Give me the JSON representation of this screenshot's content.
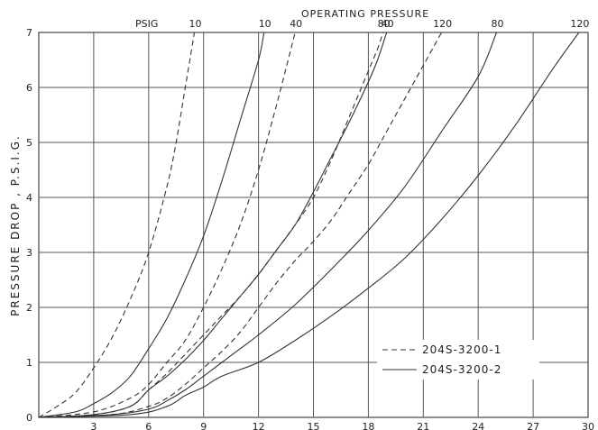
{
  "chart_data": {
    "type": "line",
    "ylabel": "PRESSURE DROP , P.S.I.G.",
    "xlim": [
      0,
      30
    ],
    "ylim": [
      0,
      7
    ],
    "x_ticks": [
      "3",
      "6",
      "9",
      "12",
      "15",
      "18",
      "21",
      "24",
      "27",
      "30"
    ],
    "y_ticks": [
      "0",
      "1",
      "2",
      "3",
      "4",
      "5",
      "6",
      "7"
    ],
    "top_labels": {
      "unit": "PSIG",
      "title": "OPERATING PRESSURE"
    },
    "grid": true,
    "legend": {
      "placement": "bottom-right",
      "entries": [
        {
          "name": "204S-3200-1",
          "style": "dashed"
        },
        {
          "name": "204S-3200-2",
          "style": "solid"
        }
      ]
    },
    "series": [
      {
        "name": "204S-3200-1",
        "label": "10",
        "style": "dashed",
        "points": [
          [
            0,
            0
          ],
          [
            1,
            0.2
          ],
          [
            2,
            0.45
          ],
          [
            3,
            0.9
          ],
          [
            4,
            1.45
          ],
          [
            5,
            2.15
          ],
          [
            6,
            3.0
          ],
          [
            7,
            4.2
          ],
          [
            7.5,
            5.0
          ],
          [
            8,
            6.0
          ],
          [
            8.5,
            7.0
          ]
        ]
      },
      {
        "name": "204S-3200-2",
        "label": "10",
        "style": "solid",
        "points": [
          [
            0,
            0
          ],
          [
            2,
            0.1
          ],
          [
            3,
            0.25
          ],
          [
            4,
            0.45
          ],
          [
            5,
            0.75
          ],
          [
            6,
            1.25
          ],
          [
            7,
            1.8
          ],
          [
            8,
            2.5
          ],
          [
            9,
            3.3
          ],
          [
            10,
            4.3
          ],
          [
            11,
            5.4
          ],
          [
            12,
            6.5
          ],
          [
            12.3,
            7.0
          ]
        ]
      },
      {
        "name": "204S-3200-1",
        "label": "40",
        "style": "dashed",
        "points": [
          [
            0,
            0
          ],
          [
            3,
            0.1
          ],
          [
            5,
            0.35
          ],
          [
            6,
            0.6
          ],
          [
            7,
            1.0
          ],
          [
            8,
            1.4
          ],
          [
            9,
            2.0
          ],
          [
            10,
            2.7
          ],
          [
            11,
            3.5
          ],
          [
            12,
            4.5
          ],
          [
            13,
            5.7
          ],
          [
            14,
            7.0
          ]
        ]
      },
      {
        "name": "204S-3200-2",
        "label": "40",
        "style": "solid",
        "points": [
          [
            0,
            0
          ],
          [
            3,
            0.05
          ],
          [
            5,
            0.2
          ],
          [
            6,
            0.5
          ],
          [
            7,
            0.75
          ],
          [
            8,
            1.05
          ],
          [
            9,
            1.4
          ],
          [
            10,
            1.8
          ],
          [
            11,
            2.2
          ],
          [
            12,
            2.6
          ],
          [
            13,
            3.05
          ],
          [
            14,
            3.5
          ],
          [
            15,
            4.1
          ],
          [
            16,
            4.75
          ],
          [
            17,
            5.4
          ],
          [
            18,
            6.1
          ],
          [
            18.5,
            6.5
          ],
          [
            19,
            7.0
          ]
        ]
      },
      {
        "name": "204S-3200-1",
        "label": "80",
        "style": "dashed",
        "points": [
          [
            0,
            0
          ],
          [
            3,
            0.05
          ],
          [
            5,
            0.2
          ],
          [
            6,
            0.5
          ],
          [
            7,
            0.8
          ],
          [
            8,
            1.15
          ],
          [
            9,
            1.5
          ],
          [
            10,
            1.85
          ],
          [
            11,
            2.2
          ],
          [
            12,
            2.6
          ],
          [
            13,
            3.05
          ],
          [
            14,
            3.5
          ],
          [
            15,
            4.0
          ],
          [
            16,
            4.7
          ],
          [
            17,
            5.5
          ],
          [
            18,
            6.3
          ],
          [
            18.5,
            6.7
          ],
          [
            18.8,
            7.0
          ]
        ]
      },
      {
        "name": "204S-3200-2",
        "label": "80",
        "style": "solid",
        "points": [
          [
            0,
            0
          ],
          [
            4,
            0.05
          ],
          [
            6,
            0.15
          ],
          [
            7,
            0.3
          ],
          [
            8,
            0.5
          ],
          [
            9,
            0.75
          ],
          [
            10,
            1.0
          ],
          [
            11,
            1.25
          ],
          [
            12,
            1.5
          ],
          [
            14,
            2.05
          ],
          [
            16,
            2.7
          ],
          [
            18,
            3.4
          ],
          [
            20,
            4.2
          ],
          [
            22,
            5.2
          ],
          [
            24,
            6.2
          ],
          [
            25,
            7.0
          ]
        ]
      },
      {
        "name": "204S-3200-1",
        "label": "120",
        "style": "dashed",
        "points": [
          [
            0,
            0
          ],
          [
            4,
            0.05
          ],
          [
            6,
            0.2
          ],
          [
            7,
            0.35
          ],
          [
            8,
            0.6
          ],
          [
            9,
            0.9
          ],
          [
            10,
            1.2
          ],
          [
            11,
            1.55
          ],
          [
            12,
            2.0
          ],
          [
            13,
            2.45
          ],
          [
            14,
            2.85
          ],
          [
            15,
            3.2
          ],
          [
            16,
            3.6
          ],
          [
            17,
            4.1
          ],
          [
            18,
            4.6
          ],
          [
            19,
            5.2
          ],
          [
            20,
            5.8
          ],
          [
            21,
            6.4
          ],
          [
            22,
            7.0
          ]
        ]
      },
      {
        "name": "204S-3200-2",
        "label": "120",
        "style": "solid",
        "points": [
          [
            0,
            0
          ],
          [
            5,
            0.05
          ],
          [
            7,
            0.2
          ],
          [
            8,
            0.4
          ],
          [
            9,
            0.55
          ],
          [
            10,
            0.75
          ],
          [
            12,
            1.0
          ],
          [
            14,
            1.4
          ],
          [
            16,
            1.85
          ],
          [
            18,
            2.35
          ],
          [
            20,
            2.9
          ],
          [
            22,
            3.6
          ],
          [
            24,
            4.4
          ],
          [
            26,
            5.3
          ],
          [
            28,
            6.3
          ],
          [
            29.5,
            7.0
          ]
        ]
      }
    ]
  }
}
